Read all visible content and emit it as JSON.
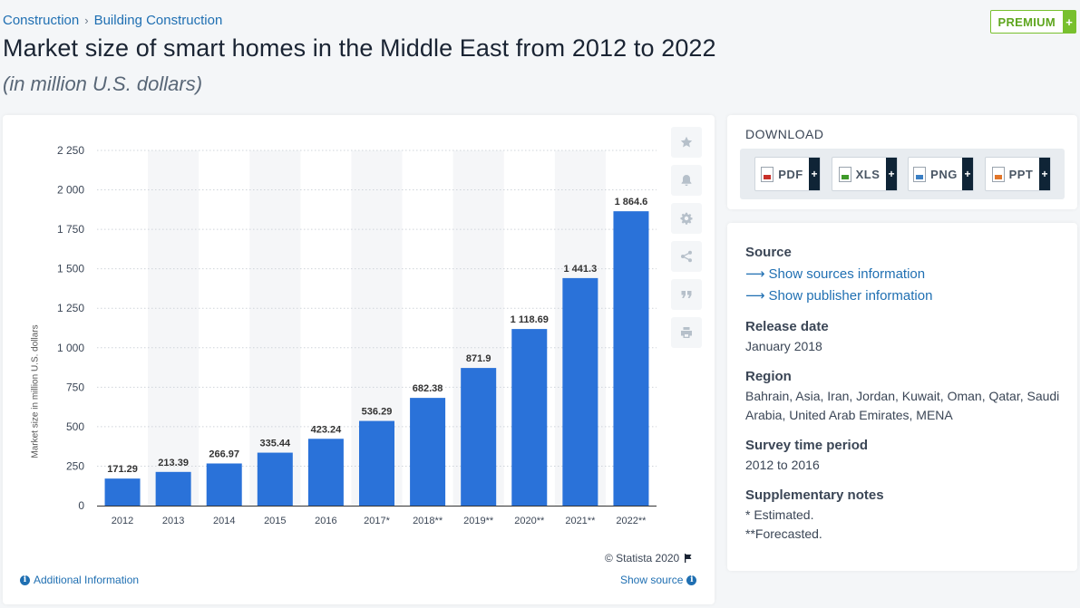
{
  "breadcrumb": {
    "items": [
      "Construction",
      "Building Construction"
    ],
    "separator": "›"
  },
  "premium": {
    "label": "PREMIUM",
    "plus": "+"
  },
  "header": {
    "title": "Market size of smart homes in the Middle East from 2012 to 2022",
    "subtitle": "(in million U.S. dollars)"
  },
  "chart_data": {
    "type": "bar",
    "title": "Market size of smart homes in the Middle East from 2012 to 2022",
    "subtitle": "(in million U.S. dollars)",
    "xlabel": "",
    "ylabel": "Market size in million U.S. dollars",
    "categories": [
      "2012",
      "2013",
      "2014",
      "2015",
      "2016",
      "2017*",
      "2018**",
      "2019**",
      "2020**",
      "2021**",
      "2022**"
    ],
    "values": [
      171.29,
      213.39,
      266.97,
      335.44,
      423.24,
      536.29,
      682.38,
      871.9,
      1118.69,
      1441.3,
      1864.6
    ],
    "value_labels": [
      "171.29",
      "213.39",
      "266.97",
      "335.44",
      "423.24",
      "536.29",
      "682.38",
      "871.9",
      "1 118.69",
      "1 441.3",
      "1 864.6"
    ],
    "ylim": [
      0,
      2250
    ],
    "yticks": [
      0,
      250,
      500,
      750,
      1000,
      1250,
      1500,
      1750,
      2000,
      2250
    ],
    "ytick_labels": [
      "0",
      "250",
      "500",
      "750",
      "1 000",
      "1 250",
      "1 500",
      "1 750",
      "2 000",
      "2 250"
    ],
    "grid": true,
    "bar_color": "#2a72d9"
  },
  "chart": {
    "credit": "© Statista 2020",
    "additional_info": "Additional Information",
    "show_source": "Show source",
    "tools": [
      "star-icon",
      "bell-icon",
      "gear-icon",
      "share-icon",
      "quote-icon",
      "print-icon"
    ]
  },
  "download": {
    "heading": "DOWNLOAD",
    "buttons": [
      {
        "label": "PDF",
        "color": "#c8302a"
      },
      {
        "label": "XLS",
        "color": "#3f9a2a"
      },
      {
        "label": "PNG",
        "color": "#3a7fc4"
      },
      {
        "label": "PPT",
        "color": "#e2762a"
      }
    ],
    "plus": "+"
  },
  "info": {
    "source_heading": "Source",
    "show_sources": "Show sources information",
    "show_publisher": "Show publisher information",
    "release_heading": "Release date",
    "release_value": "January 2018",
    "region_heading": "Region",
    "region_value": "Bahrain, Asia, Iran, Jordan, Kuwait, Oman, Qatar, Saudi Arabia, United Arab Emirates, MENA",
    "survey_heading": "Survey time period",
    "survey_value": "2012 to 2016",
    "notes_heading": "Supplementary notes",
    "note1": "* Estimated.",
    "note2": "**Forecasted."
  },
  "colors": {
    "accent": "#1f6fb2",
    "premium": "#78c02e",
    "bar": "#2a72d9"
  }
}
